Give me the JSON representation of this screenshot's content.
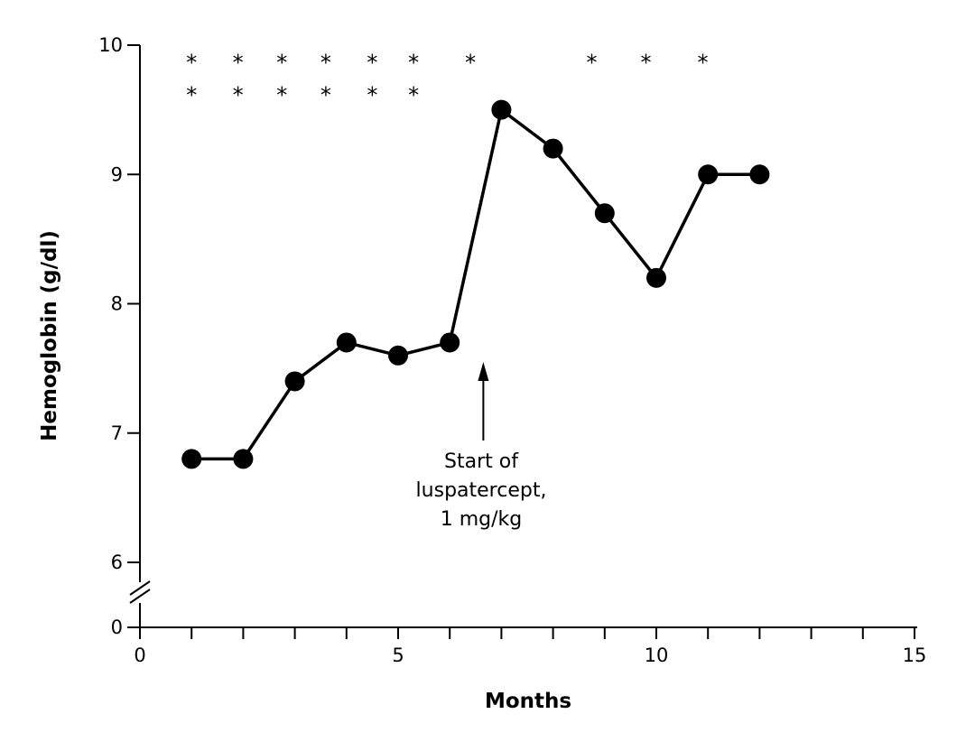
{
  "chart_data": {
    "type": "line",
    "xlabel": "Months",
    "ylabel": "Hemoglobin (g/dl)",
    "xlim": [
      0,
      15
    ],
    "ylim": [
      6,
      10
    ],
    "y_axis_break": true,
    "y_break_floor_label": "0",
    "x_ticks_major": [
      0,
      5,
      10,
      15
    ],
    "x_tick_labels": [
      "0",
      "5",
      "10",
      "15"
    ],
    "x_ticks_minor": [
      1,
      2,
      3,
      4,
      6,
      7,
      8,
      9,
      11,
      12,
      13,
      14
    ],
    "y_ticks": [
      6,
      7,
      8,
      9,
      10
    ],
    "y_tick_labels": [
      "6",
      "7",
      "8",
      "9",
      "10"
    ],
    "grid": false,
    "legend": "none",
    "series": [
      {
        "x": [
          1,
          2,
          3,
          4,
          5,
          6,
          7,
          8,
          9,
          10,
          11,
          12
        ],
        "y": [
          6.8,
          6.8,
          7.4,
          7.7,
          7.6,
          7.7,
          9.5,
          9.2,
          8.7,
          8.2,
          9.0,
          9.0
        ]
      }
    ],
    "annotation": {
      "lines": [
        "Start of",
        "luspatercept,",
        "1 mg/kg"
      ],
      "arrow_x": 6.65
    },
    "star_rows": [
      {
        "y": 9.92,
        "x": [
          1,
          1.9,
          2.75,
          3.6,
          4.5,
          5.3,
          6.4,
          8.75,
          9.8,
          10.9
        ]
      },
      {
        "y": 9.67,
        "x": [
          1,
          1.9,
          2.75,
          3.6,
          4.5,
          5.3
        ]
      }
    ],
    "star_glyph": "*",
    "color": "#000000"
  }
}
